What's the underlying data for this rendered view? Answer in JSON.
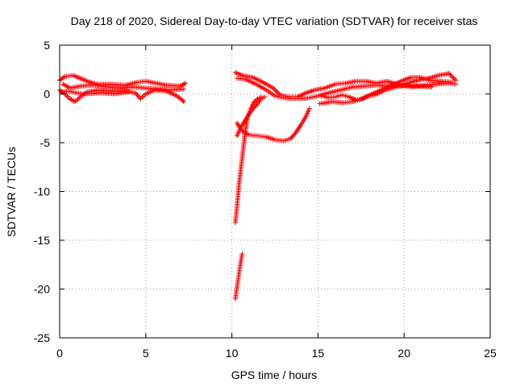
{
  "chart_data": {
    "type": "scatter",
    "title": "Day 218 of 2020, Sidereal Day-to-day VTEC variation (SDTVAR) for receiver stas",
    "xlabel": "GPS time / hours",
    "ylabel": "SDTVAR / TECUs",
    "xlim": [
      0,
      25
    ],
    "ylim": [
      -25,
      5
    ],
    "xticks": [
      0,
      5,
      10,
      15,
      20,
      25
    ],
    "yticks": [
      5,
      0,
      -5,
      -10,
      -15,
      -20,
      -25
    ],
    "xtick_labels": [
      "0",
      "5",
      "10",
      "15",
      "20",
      "25"
    ],
    "ytick_labels": [
      "5",
      "0",
      "-5",
      "-10",
      "-15",
      "-20",
      "-25"
    ],
    "grid": true,
    "marker": "+",
    "color": "#ff0000",
    "series": [
      {
        "name": "SDTVAR",
        "segments": [
          [
            [
              0.0,
              1.4
            ],
            [
              0.3,
              1.8
            ],
            [
              0.8,
              1.9
            ],
            [
              1.2,
              1.6
            ],
            [
              1.6,
              1.3
            ],
            [
              2.2,
              1.0
            ],
            [
              3.0,
              1.0
            ],
            [
              3.8,
              0.9
            ],
            [
              4.5,
              1.2
            ],
            [
              5.0,
              1.3
            ],
            [
              5.6,
              1.1
            ],
            [
              6.2,
              0.9
            ],
            [
              7.0,
              0.8
            ],
            [
              7.3,
              1.1
            ]
          ],
          [
            [
              0.0,
              0.4
            ],
            [
              0.3,
              0.0
            ],
            [
              0.6,
              -0.5
            ],
            [
              0.9,
              -0.8
            ],
            [
              1.2,
              -0.3
            ],
            [
              1.6,
              0.2
            ],
            [
              2.2,
              0.4
            ],
            [
              3.0,
              0.3
            ],
            [
              3.8,
              0.3
            ],
            [
              4.4,
              0.1
            ],
            [
              4.7,
              -0.5
            ],
            [
              5.0,
              0.0
            ],
            [
              5.5,
              0.4
            ],
            [
              6.2,
              0.3
            ],
            [
              6.8,
              -0.2
            ],
            [
              7.1,
              -0.6
            ],
            [
              7.2,
              -0.8
            ]
          ],
          [
            [
              0.2,
              1.0
            ],
            [
              0.6,
              0.6
            ],
            [
              1.2,
              0.8
            ],
            [
              2.0,
              0.9
            ],
            [
              2.8,
              0.7
            ],
            [
              3.6,
              0.6
            ],
            [
              4.3,
              0.7
            ],
            [
              5.0,
              0.6
            ],
            [
              5.8,
              0.5
            ],
            [
              6.5,
              0.4
            ],
            [
              7.2,
              0.5
            ]
          ],
          [
            [
              0.1,
              0.2
            ],
            [
              0.5,
              0.3
            ],
            [
              1.0,
              0.1
            ],
            [
              1.5,
              0.0
            ],
            [
              2.3,
              0.1
            ],
            [
              3.2,
              0.0
            ],
            [
              4.0,
              0.2
            ]
          ],
          [
            [
              10.2,
              2.2
            ],
            [
              10.6,
              1.9
            ],
            [
              11.2,
              1.7
            ],
            [
              11.8,
              1.2
            ],
            [
              12.4,
              0.6
            ],
            [
              12.8,
              -0.1
            ],
            [
              13.3,
              -0.3
            ],
            [
              13.8,
              -0.3
            ],
            [
              14.3,
              0.1
            ],
            [
              14.8,
              0.4
            ],
            [
              15.4,
              0.6
            ],
            [
              16.0,
              1.0
            ],
            [
              16.6,
              1.1
            ],
            [
              17.2,
              1.3
            ],
            [
              17.8,
              1.3
            ],
            [
              18.4,
              1.1
            ],
            [
              19.0,
              1.3
            ],
            [
              19.6,
              1.0
            ],
            [
              20.2,
              1.1
            ],
            [
              20.8,
              1.4
            ],
            [
              21.4,
              1.6
            ],
            [
              22.0,
              1.9
            ],
            [
              22.6,
              2.1
            ],
            [
              23.0,
              1.4
            ]
          ],
          [
            [
              10.3,
              1.6
            ],
            [
              10.8,
              1.5
            ],
            [
              11.4,
              1.0
            ],
            [
              12.0,
              0.4
            ],
            [
              12.5,
              -0.2
            ],
            [
              13.0,
              -0.4
            ],
            [
              13.5,
              -0.5
            ],
            [
              14.0,
              -0.5
            ],
            [
              14.5,
              -0.4
            ],
            [
              15.0,
              -0.2
            ],
            [
              15.6,
              0.1
            ],
            [
              16.3,
              0.4
            ],
            [
              17.0,
              0.7
            ],
            [
              17.7,
              0.8
            ],
            [
              18.4,
              0.9
            ],
            [
              19.1,
              0.8
            ],
            [
              19.8,
              0.9
            ],
            [
              20.5,
              0.7
            ],
            [
              21.2,
              0.9
            ],
            [
              21.9,
              1.0
            ],
            [
              22.6,
              1.1
            ],
            [
              23.0,
              1.0
            ]
          ],
          [
            [
              15.2,
              -0.2
            ],
            [
              15.6,
              -0.4
            ],
            [
              16.0,
              -0.3
            ],
            [
              16.4,
              -0.1
            ],
            [
              16.8,
              -0.3
            ],
            [
              17.2,
              -0.6
            ],
            [
              17.6,
              -0.5
            ],
            [
              18.0,
              -0.1
            ],
            [
              18.4,
              0.2
            ],
            [
              18.8,
              0.5
            ],
            [
              19.3,
              0.9
            ],
            [
              19.8,
              1.3
            ],
            [
              20.4,
              1.7
            ],
            [
              20.9,
              1.7
            ],
            [
              21.5,
              1.4
            ],
            [
              22.2,
              1.3
            ],
            [
              22.8,
              1.2
            ]
          ],
          [
            [
              15.1,
              -1.0
            ],
            [
              15.8,
              -0.8
            ],
            [
              16.5,
              -0.9
            ],
            [
              17.0,
              -0.8
            ],
            [
              17.4,
              -0.6
            ],
            [
              17.8,
              -0.3
            ],
            [
              18.3,
              -0.1
            ],
            [
              18.9,
              0.4
            ],
            [
              19.5,
              0.7
            ],
            [
              20.2,
              0.9
            ],
            [
              20.9,
              0.8
            ],
            [
              21.6,
              0.7
            ]
          ],
          [
            [
              10.3,
              -3.0
            ],
            [
              10.6,
              -3.8
            ],
            [
              11.0,
              -4.2
            ],
            [
              11.5,
              -4.3
            ],
            [
              12.0,
              -4.4
            ],
            [
              12.5,
              -4.7
            ],
            [
              13.0,
              -4.8
            ],
            [
              13.4,
              -4.6
            ],
            [
              13.7,
              -4.0
            ],
            [
              14.0,
              -3.2
            ],
            [
              14.3,
              -2.3
            ],
            [
              14.5,
              -1.5
            ]
          ],
          [
            [
              10.3,
              -4.3
            ],
            [
              10.5,
              -3.5
            ],
            [
              10.8,
              -2.6
            ],
            [
              11.1,
              -1.8
            ],
            [
              11.4,
              -1.2
            ],
            [
              11.7,
              -0.5
            ],
            [
              11.9,
              -0.3
            ]
          ],
          [
            [
              10.2,
              -13.2
            ],
            [
              10.3,
              -11.5
            ],
            [
              10.4,
              -9.5
            ],
            [
              10.5,
              -8.0
            ],
            [
              10.6,
              -6.5
            ],
            [
              10.7,
              -5.0
            ],
            [
              10.8,
              -3.6
            ],
            [
              10.9,
              -2.5
            ],
            [
              11.1,
              -1.5
            ],
            [
              11.3,
              -0.8
            ],
            [
              11.5,
              -0.5
            ],
            [
              11.7,
              -0.3
            ]
          ],
          [
            [
              10.2,
              -21.0
            ],
            [
              10.3,
              -19.8
            ],
            [
              10.4,
              -18.6
            ],
            [
              10.5,
              -17.4
            ],
            [
              10.6,
              -16.4
            ]
          ]
        ]
      }
    ]
  }
}
